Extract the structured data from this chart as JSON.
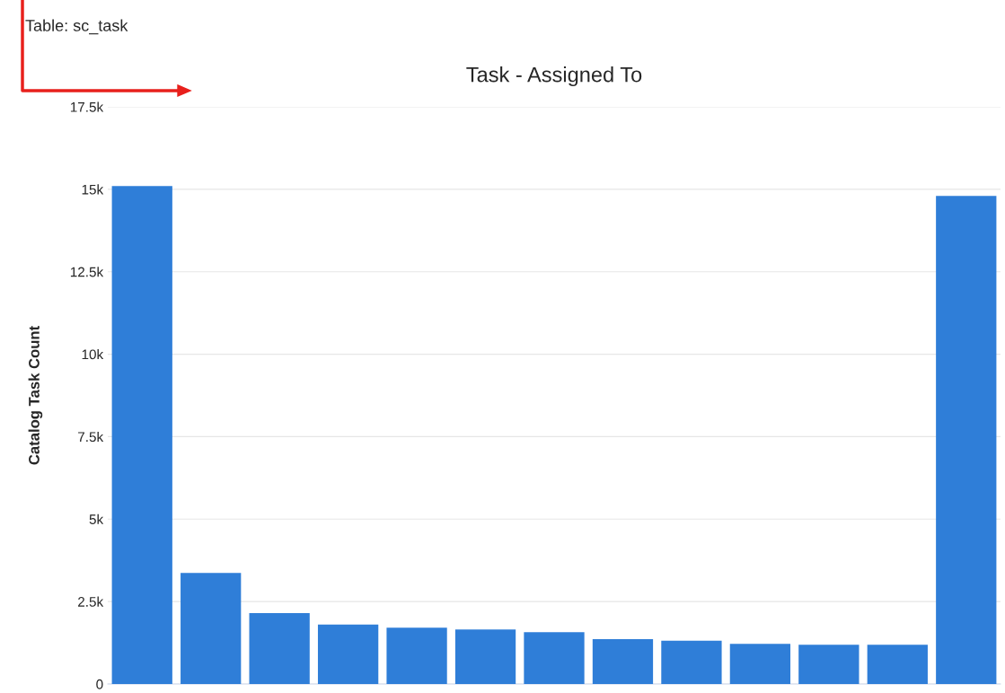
{
  "chart_data": {
    "type": "bar",
    "title": "Task - Assigned To",
    "ylabel": "Catalog Task Count",
    "annotations": [
      "Table: sc_task"
    ],
    "categories": [
      null,
      null,
      null,
      null,
      null,
      null,
      null,
      null,
      null,
      null,
      null,
      null,
      null
    ],
    "values": [
      15100,
      3370,
      2150,
      1800,
      1710,
      1650,
      1570,
      1360,
      1310,
      1220,
      1190,
      1190,
      14800
    ],
    "color": "#2f7ed8",
    "ylim": [
      0,
      17500
    ],
    "yticks": [
      {
        "value": 0,
        "label": "0"
      },
      {
        "value": 2500,
        "label": "2.5k"
      },
      {
        "value": 5000,
        "label": "5k"
      },
      {
        "value": 7500,
        "label": "7.5k"
      },
      {
        "value": 10000,
        "label": "10k"
      },
      {
        "value": 12500,
        "label": "12.5k"
      },
      {
        "value": 15000,
        "label": "15k"
      },
      {
        "value": 17500,
        "label": "17.5k"
      }
    ],
    "grid": "y",
    "legend": false
  }
}
